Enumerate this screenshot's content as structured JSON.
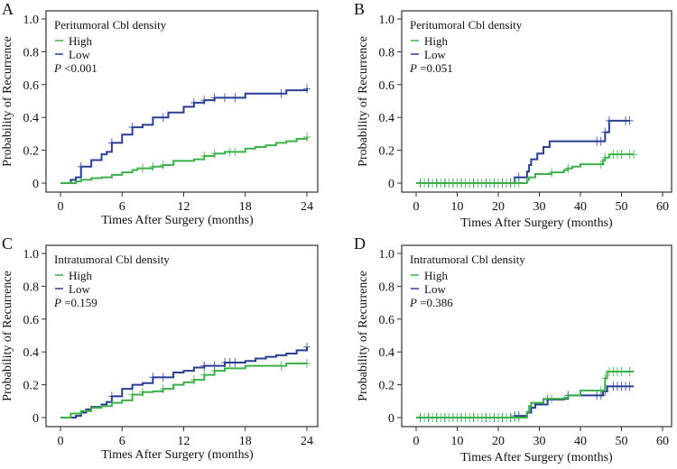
{
  "colors": {
    "High": "#3cb04a",
    "Low": "#2a3f92"
  },
  "chart_data": [
    {
      "panel": "A",
      "type": "line",
      "step": true,
      "legend_title": "Peritumoral Cbl density",
      "p_label": "P",
      "p_value": "<0.001",
      "xlabel": "Times After Surgery (months)",
      "ylabel": "Probability of Recurrence",
      "xlim": [
        0,
        24
      ],
      "ylim": [
        0,
        1
      ],
      "xticks": [
        0,
        6,
        12,
        18,
        24
      ],
      "yticks": [
        0,
        0.2,
        0.4,
        0.6,
        0.8,
        1.0
      ],
      "ytick_labels": [
        "0",
        "0.2",
        "0.4",
        "0.6",
        "0.8",
        "1.0"
      ],
      "grid": false,
      "legend": "top-left",
      "series": [
        {
          "name": "High",
          "end": 24,
          "steps": [
            [
              0,
              0
            ],
            [
              1.5,
              0.01
            ],
            [
              2,
              0.02
            ],
            [
              3,
              0.03
            ],
            [
              4,
              0.035
            ],
            [
              5,
              0.05
            ],
            [
              6,
              0.065
            ],
            [
              7,
              0.08
            ],
            [
              7.5,
              0.09
            ],
            [
              9,
              0.1
            ],
            [
              10,
              0.11
            ],
            [
              11,
              0.135
            ],
            [
              13,
              0.145
            ],
            [
              14,
              0.165
            ],
            [
              15,
              0.18
            ],
            [
              16,
              0.19
            ],
            [
              18,
              0.21
            ],
            [
              19,
              0.22
            ],
            [
              20,
              0.23
            ],
            [
              21,
              0.245
            ],
            [
              22,
              0.255
            ],
            [
              23,
              0.27
            ],
            [
              24,
              0.28
            ]
          ],
          "censor": [
            8,
            9,
            10,
            14,
            15,
            16.5,
            17,
            24
          ]
        },
        {
          "name": "Low",
          "end": 24,
          "steps": [
            [
              0,
              0
            ],
            [
              1,
              0.02
            ],
            [
              1.5,
              0.035
            ],
            [
              2,
              0.1
            ],
            [
              3,
              0.14
            ],
            [
              4,
              0.175
            ],
            [
              4.5,
              0.19
            ],
            [
              5,
              0.245
            ],
            [
              6,
              0.295
            ],
            [
              7,
              0.34
            ],
            [
              8,
              0.355
            ],
            [
              9,
              0.4
            ],
            [
              10.5,
              0.43
            ],
            [
              12,
              0.465
            ],
            [
              13,
              0.49
            ],
            [
              14,
              0.505
            ],
            [
              15,
              0.52
            ],
            [
              18,
              0.545
            ],
            [
              22,
              0.565
            ],
            [
              24,
              0.575
            ]
          ],
          "censor": [
            2,
            5,
            7,
            10,
            13,
            14,
            15,
            16,
            17,
            21.5,
            24
          ]
        }
      ]
    },
    {
      "panel": "B",
      "type": "line",
      "step": true,
      "legend_title": "Peritumoral Cbl density",
      "p_label": "P",
      "p_value": "=0.051",
      "xlabel": "Times After Surgery (months)",
      "ylabel": "Probability of Recurrence",
      "xlim": [
        0,
        60
      ],
      "ylim": [
        0,
        1
      ],
      "xticks": [
        0,
        10,
        20,
        30,
        40,
        50,
        60
      ],
      "yticks": [
        0,
        0.2,
        0.4,
        0.6,
        0.8,
        1.0
      ],
      "ytick_labels": [
        "0",
        "0.2",
        "0.4",
        "0.6",
        "0.8",
        "1.0"
      ],
      "grid": false,
      "legend": "top-left",
      "series": [
        {
          "name": "High",
          "end": 53,
          "steps": [
            [
              0,
              0
            ],
            [
              27,
              0.02
            ],
            [
              27.5,
              0.035
            ],
            [
              29,
              0.055
            ],
            [
              33,
              0.065
            ],
            [
              36,
              0.08
            ],
            [
              37,
              0.09
            ],
            [
              38,
              0.1
            ],
            [
              40,
              0.115
            ],
            [
              45.5,
              0.14
            ],
            [
              46,
              0.155
            ],
            [
              47,
              0.175
            ]
          ],
          "censor": [
            1,
            2,
            3,
            4,
            5,
            6,
            7,
            8,
            9,
            10,
            11,
            12,
            13,
            14,
            15,
            16,
            17,
            18,
            19,
            20,
            21,
            22,
            23,
            24,
            25,
            33,
            37,
            45,
            46,
            48,
            49,
            50,
            52,
            53
          ]
        },
        {
          "name": "Low",
          "end": 52,
          "steps": [
            [
              0,
              0
            ],
            [
              24,
              0.035
            ],
            [
              27,
              0.07
            ],
            [
              27.5,
              0.11
            ],
            [
              28,
              0.145
            ],
            [
              29.5,
              0.18
            ],
            [
              31,
              0.22
            ],
            [
              32.5,
              0.255
            ],
            [
              46,
              0.31
            ],
            [
              47,
              0.38
            ]
          ],
          "censor": [
            1,
            3,
            5,
            7,
            9,
            11,
            14,
            17,
            19,
            21,
            23,
            25,
            44,
            45,
            46,
            47,
            51,
            52
          ]
        }
      ]
    },
    {
      "panel": "C",
      "type": "line",
      "step": true,
      "legend_title": "Intratumoral Cbl density",
      "p_label": "P",
      "p_value": "=0.159",
      "xlabel": "Times After Surgery (months)",
      "ylabel": "Probability of Recurrence",
      "xlim": [
        0,
        24
      ],
      "ylim": [
        0,
        1
      ],
      "xticks": [
        0,
        6,
        12,
        18,
        24
      ],
      "yticks": [
        0,
        0.2,
        0.4,
        0.6,
        0.8,
        1.0
      ],
      "ytick_labels": [
        "0",
        "0.2",
        "0.4",
        "0.6",
        "0.8",
        "1.0"
      ],
      "grid": false,
      "legend": "top-left",
      "series": [
        {
          "name": "High",
          "end": 24,
          "steps": [
            [
              0,
              0
            ],
            [
              1,
              0.025
            ],
            [
              2,
              0.04
            ],
            [
              3,
              0.06
            ],
            [
              4,
              0.07
            ],
            [
              5,
              0.09
            ],
            [
              6,
              0.105
            ],
            [
              7,
              0.14
            ],
            [
              8,
              0.155
            ],
            [
              9,
              0.16
            ],
            [
              10,
              0.175
            ],
            [
              11,
              0.2
            ],
            [
              12,
              0.215
            ],
            [
              13,
              0.23
            ],
            [
              14,
              0.26
            ],
            [
              15,
              0.285
            ],
            [
              16,
              0.3
            ],
            [
              18,
              0.315
            ],
            [
              22,
              0.33
            ],
            [
              24,
              0.33
            ]
          ],
          "censor": [
            7,
            8,
            10,
            13,
            14,
            15,
            21.5,
            24
          ]
        },
        {
          "name": "Low",
          "end": 24,
          "steps": [
            [
              0,
              0
            ],
            [
              1.5,
              0.01
            ],
            [
              2,
              0.03
            ],
            [
              2.5,
              0.05
            ],
            [
              3,
              0.065
            ],
            [
              4,
              0.08
            ],
            [
              4.5,
              0.095
            ],
            [
              5,
              0.13
            ],
            [
              6,
              0.175
            ],
            [
              7,
              0.2
            ],
            [
              8,
              0.21
            ],
            [
              9,
              0.245
            ],
            [
              11,
              0.275
            ],
            [
              12,
              0.285
            ],
            [
              13,
              0.305
            ],
            [
              14,
              0.315
            ],
            [
              16,
              0.335
            ],
            [
              18,
              0.345
            ],
            [
              19,
              0.36
            ],
            [
              20,
              0.37
            ],
            [
              21,
              0.38
            ],
            [
              22,
              0.39
            ],
            [
              23,
              0.41
            ],
            [
              24,
              0.43
            ]
          ],
          "censor": [
            5,
            9,
            10,
            14,
            15,
            16,
            16.5,
            17,
            24
          ]
        }
      ]
    },
    {
      "panel": "D",
      "type": "line",
      "step": true,
      "legend_title": "Intratumoral Cbl density",
      "p_label": "P",
      "p_value": "=0.386",
      "xlabel": "Times After Surgery (months)",
      "ylabel": "Probability of Recurrence",
      "xlim": [
        0,
        60
      ],
      "ylim": [
        0,
        1
      ],
      "xticks": [
        0,
        10,
        20,
        30,
        40,
        50,
        60
      ],
      "yticks": [
        0,
        0.2,
        0.4,
        0.6,
        0.8,
        1.0
      ],
      "ytick_labels": [
        "0",
        "0.2",
        "0.4",
        "0.6",
        "0.8",
        "1.0"
      ],
      "grid": false,
      "legend": "top-left",
      "series": [
        {
          "name": "High",
          "end": 53,
          "steps": [
            [
              0,
              0
            ],
            [
              27,
              0.035
            ],
            [
              27.5,
              0.07
            ],
            [
              28,
              0.09
            ],
            [
              31,
              0.115
            ],
            [
              36,
              0.12
            ],
            [
              37,
              0.135
            ],
            [
              40,
              0.165
            ],
            [
              46,
              0.24
            ],
            [
              46.5,
              0.28
            ]
          ],
          "censor": [
            1,
            2,
            3,
            4,
            5,
            6,
            7,
            8,
            9,
            10,
            11,
            12,
            13,
            14,
            15,
            16,
            17,
            18,
            19,
            20,
            21,
            22,
            23,
            24,
            25,
            33,
            45,
            46,
            47,
            48,
            49,
            50,
            52
          ]
        },
        {
          "name": "Low",
          "end": 53,
          "steps": [
            [
              0,
              0
            ],
            [
              24,
              0.01
            ],
            [
              27,
              0.03
            ],
            [
              28,
              0.06
            ],
            [
              29,
              0.08
            ],
            [
              32,
              0.11
            ],
            [
              36,
              0.115
            ],
            [
              37,
              0.135
            ],
            [
              45.5,
              0.16
            ],
            [
              46.5,
              0.19
            ]
          ],
          "censor": [
            1,
            3,
            5,
            7,
            9,
            11,
            14,
            17,
            19,
            21,
            23,
            24,
            25,
            32,
            37,
            44,
            45,
            46,
            48,
            49,
            50,
            51,
            52
          ]
        }
      ]
    }
  ]
}
